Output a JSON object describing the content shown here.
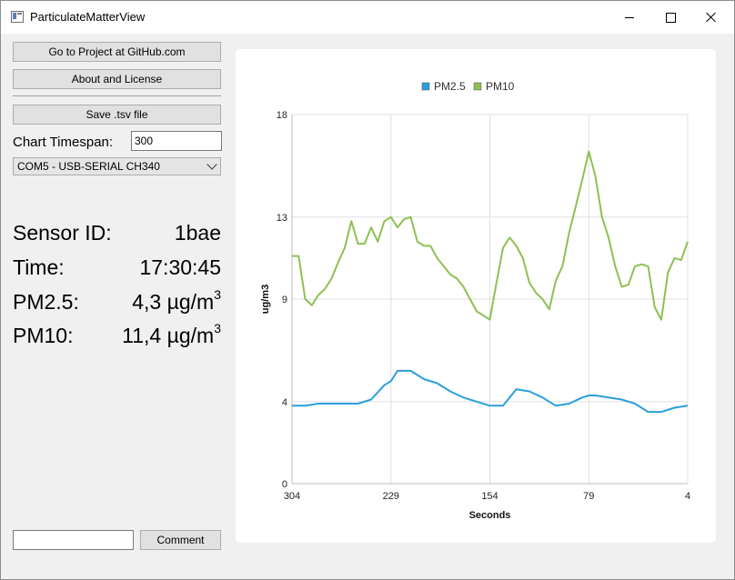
{
  "window": {
    "title": "ParticulateMatterView",
    "icon": "app-window-icon"
  },
  "controls": {
    "github_button": "Go to Project at GitHub.com",
    "about_button": "About and License",
    "save_button": "Save .tsv file",
    "timespan_label": "Chart Timespan:",
    "timespan_value": "300",
    "port_selected": "COM5 - USB-SERIAL CH340"
  },
  "readings": {
    "sensor_label": "Sensor ID:",
    "sensor_value": "1bae",
    "time_label": "Time:",
    "time_value": "17:30:45",
    "pm25_label": "PM2.5:",
    "pm25_value": "4,3 µg/m",
    "pm25_unit_exp": "3",
    "pm10_label": "PM10:",
    "pm10_value": "11,4 µg/m",
    "pm10_unit_exp": "3"
  },
  "comment": {
    "input_value": "",
    "button_label": "Comment"
  },
  "colors": {
    "pm25": "#2b9fdc",
    "pm10": "#8dc152"
  },
  "chart_data": {
    "type": "line",
    "title": "",
    "xlabel": "Seconds",
    "ylabel": "ug/m3",
    "x_ticks": [
      "304",
      "229",
      "154",
      "79",
      "4"
    ],
    "y_ticks": [
      "0",
      "4",
      "9",
      "13",
      "18"
    ],
    "xlim": [
      304,
      4
    ],
    "ylim": [
      0,
      18
    ],
    "grid": true,
    "legend": "top-center",
    "series": [
      {
        "name": "PM2.5",
        "x": [
          304,
          294,
          284,
          274,
          264,
          254,
          244,
          234,
          229,
          224,
          214,
          204,
          194,
          184,
          174,
          164,
          154,
          144,
          134,
          124,
          114,
          104,
          94,
          84,
          79,
          74,
          64,
          54,
          44,
          34,
          24,
          14,
          4
        ],
        "values": [
          3.8,
          3.8,
          3.9,
          3.9,
          3.9,
          3.9,
          4.1,
          4.8,
          5.0,
          5.5,
          5.5,
          5.1,
          4.9,
          4.5,
          4.2,
          4.0,
          3.8,
          3.8,
          4.6,
          4.5,
          4.2,
          3.8,
          3.9,
          4.2,
          4.3,
          4.3,
          4.2,
          4.1,
          3.9,
          3.5,
          3.5,
          3.7,
          3.8
        ]
      },
      {
        "name": "PM10",
        "x": [
          304,
          299,
          294,
          289,
          284,
          279,
          274,
          269,
          264,
          259,
          254,
          249,
          244,
          239,
          234,
          229,
          224,
          219,
          214,
          209,
          204,
          199,
          194,
          189,
          184,
          179,
          174,
          169,
          164,
          159,
          154,
          149,
          144,
          139,
          134,
          129,
          124,
          119,
          114,
          109,
          104,
          99,
          94,
          89,
          84,
          79,
          74,
          69,
          64,
          59,
          54,
          49,
          44,
          39,
          34,
          29,
          24,
          19,
          14,
          9,
          4
        ],
        "values": [
          11.1,
          11.1,
          9.0,
          8.7,
          9.2,
          9.5,
          10.0,
          10.8,
          11.5,
          12.8,
          11.7,
          11.7,
          12.5,
          11.8,
          12.8,
          13.0,
          12.5,
          12.9,
          13.0,
          11.8,
          11.6,
          11.6,
          11.0,
          10.6,
          10.2,
          10.0,
          9.6,
          9.0,
          8.4,
          8.2,
          8.0,
          9.8,
          11.5,
          12.0,
          11.6,
          11.0,
          9.8,
          9.3,
          9.0,
          8.5,
          9.9,
          10.6,
          12.2,
          13.5,
          14.8,
          16.2,
          15.0,
          13.0,
          12.0,
          10.6,
          9.6,
          9.7,
          10.6,
          10.7,
          10.6,
          8.6,
          8.0,
          10.3,
          11.0,
          10.9,
          11.8
        ]
      }
    ]
  }
}
